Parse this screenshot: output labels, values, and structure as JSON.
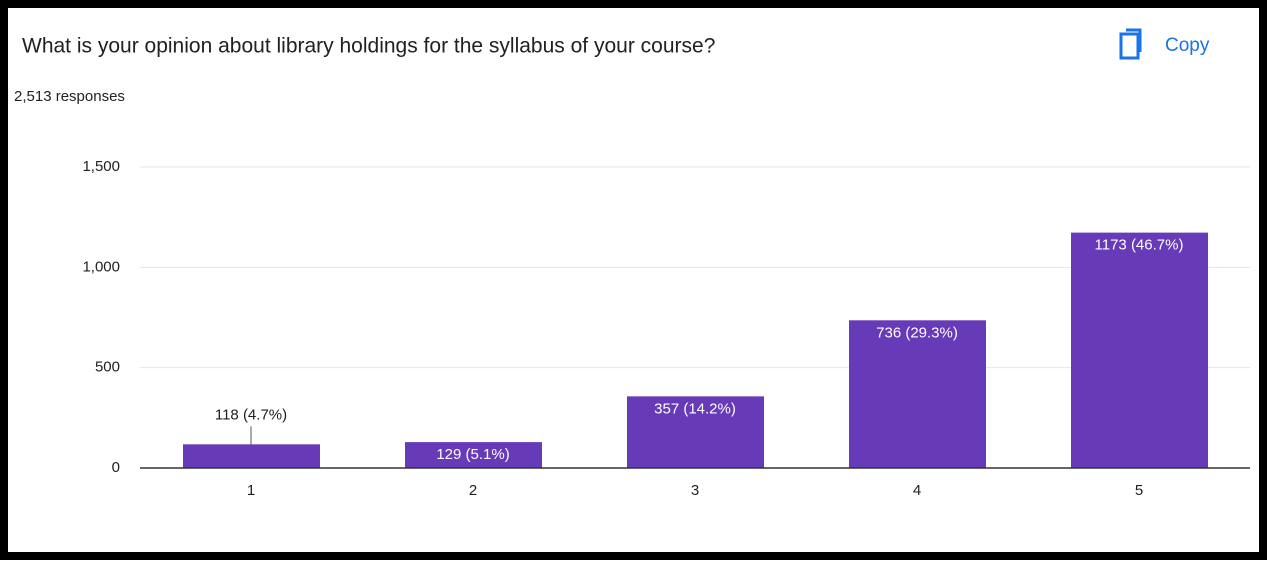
{
  "copy_button": "Copy",
  "chart_data": {
    "type": "bar",
    "title": "What is your opinion about library holdings for the syllabus of your course?",
    "subtitle": "2,513 responses",
    "categories": [
      "1",
      "2",
      "3",
      "4",
      "5"
    ],
    "values": [
      118,
      129,
      357,
      736,
      1173
    ],
    "value_labels": [
      "118 (4.7%)",
      "129 (5.1%)",
      "357 (14.2%)",
      "736 (29.3%)",
      "1173 (46.7%)"
    ],
    "color": "#673ab7",
    "ylim": [
      0,
      1500
    ],
    "yticks": [
      0,
      500,
      {
        "value": 1000,
        "label": "1,000"
      },
      {
        "value": 1500,
        "label": "1,500"
      }
    ],
    "grid": true
  }
}
